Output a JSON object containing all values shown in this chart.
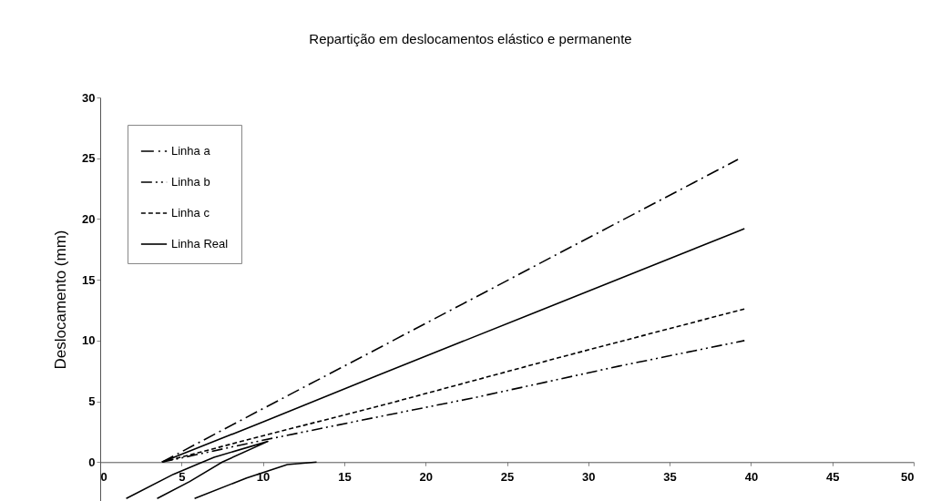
{
  "chart_data": {
    "type": "line",
    "title": "Repartição em deslocamentos elástico e permanente",
    "ylabel": "Deslocamento (mm)",
    "xlim": [
      0,
      50
    ],
    "xticks": [
      0,
      5,
      10,
      15,
      20,
      25,
      30,
      35,
      40,
      45,
      50
    ],
    "ylim": [
      -3.2,
      30
    ],
    "yticks": [
      0,
      5,
      10,
      15,
      20,
      25,
      30
    ],
    "grid": false,
    "legend": "top left",
    "series": [
      {
        "name": "Linha a",
        "color": "#000000",
        "line_style": "dashdot",
        "x": [
          3.8,
          10,
          17,
          27.8,
          39.2
        ],
        "values": [
          0,
          4.4,
          9.3,
          16.9,
          24.9
        ]
      },
      {
        "name": "Linha b",
        "color": "#000000",
        "line_style": "dashdotdot",
        "x": [
          3.8,
          10,
          17,
          23,
          31.9,
          39.6
        ],
        "values": [
          0,
          1.8,
          3.7,
          5.3,
          7.9,
          10.0
        ]
      },
      {
        "name": "Linha c",
        "color": "#000000",
        "line_style": "dashed",
        "x": [
          3.8,
          10.1,
          17.4,
          28.2,
          39.6
        ],
        "values": [
          0,
          2.2,
          4.7,
          8.6,
          12.6
        ]
      },
      {
        "name": "Linha Real",
        "color": "#000000",
        "line_style": "solid",
        "x": [
          3.8,
          10,
          17,
          26.7,
          39.6
        ],
        "values": [
          0,
          3.3,
          7.1,
          12.3,
          19.2
        ]
      },
      {
        "color": "#000000",
        "line_style": "solid",
        "x": [
          1.6,
          4.5,
          7,
          10.3,
          7.5,
          5.5,
          3.5
        ],
        "values": [
          -3.0,
          -1.0,
          0.4,
          1.7,
          0,
          -1.6,
          -3.0
        ]
      },
      {
        "color": "#000000",
        "line_style": "solid",
        "x": [
          5.8,
          9,
          11.5,
          13.3
        ],
        "values": [
          -3.0,
          -1.3,
          -0.2,
          0
        ]
      }
    ]
  }
}
